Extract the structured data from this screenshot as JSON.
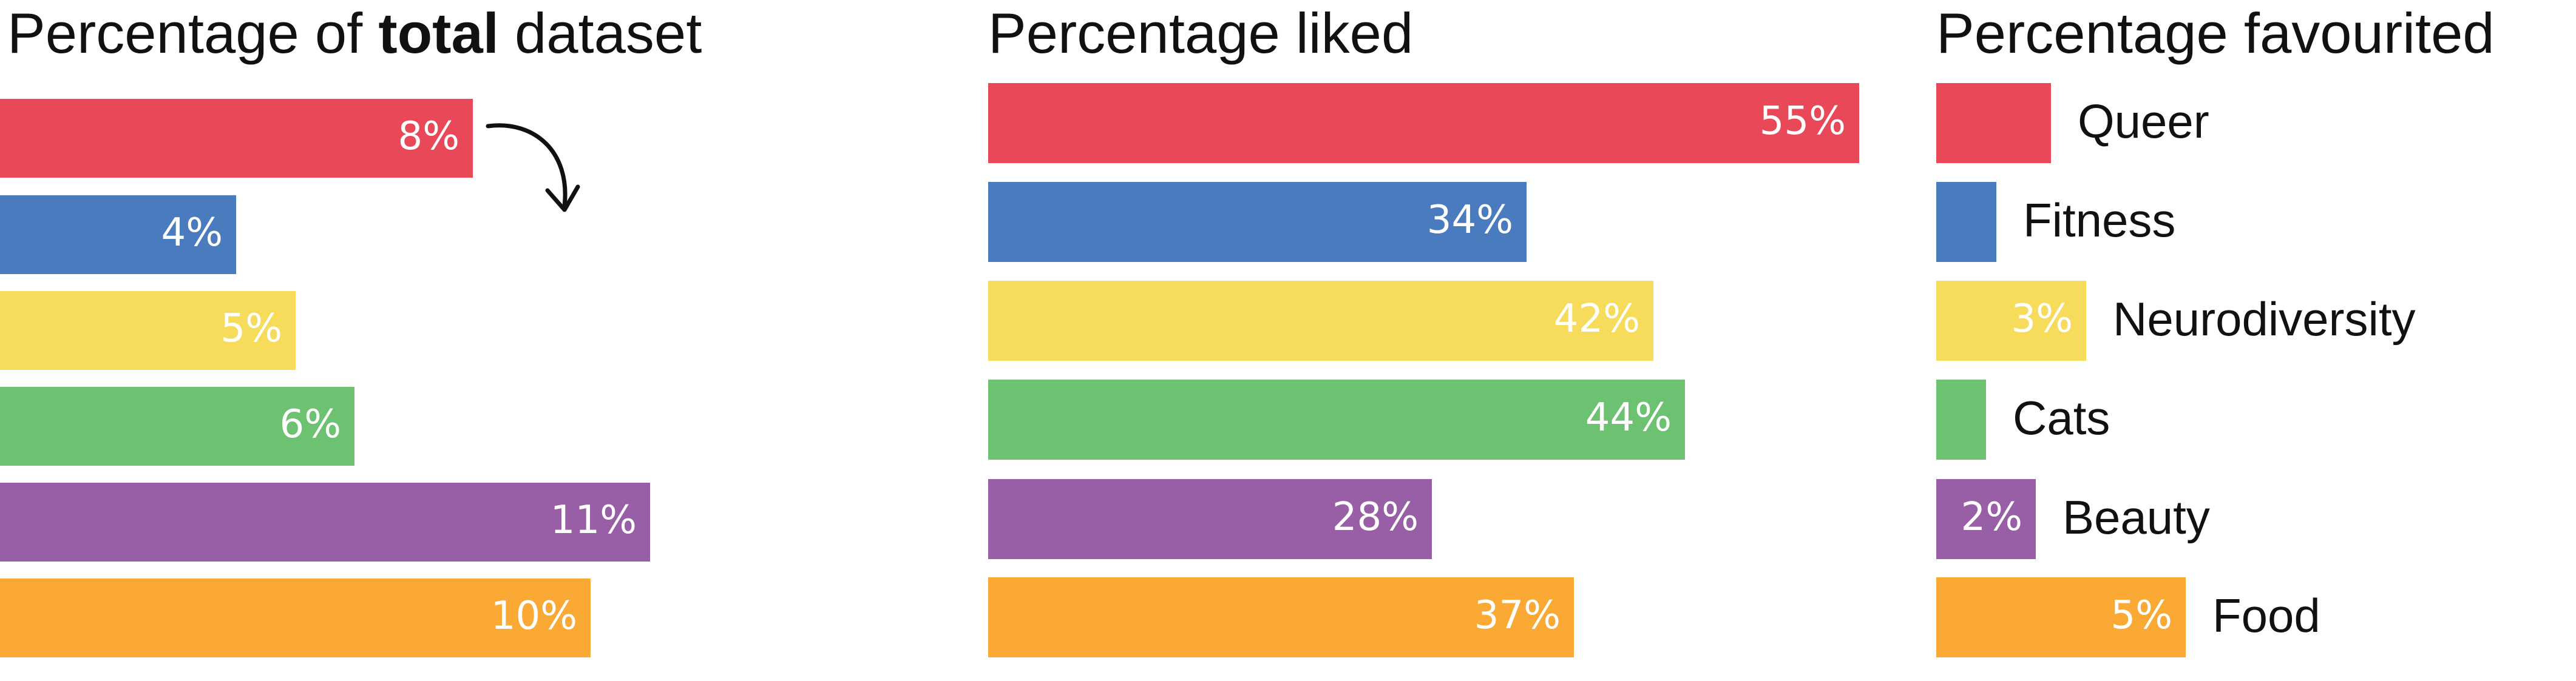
{
  "colors": {
    "Queer": "#e84857",
    "Fitness": "#4a7bbf",
    "Neurodiversity": "#f7dc5c",
    "Cats": "#6cc271",
    "Beauty": "#985fa6",
    "Food": "#faa935"
  },
  "chart_data": [
    {
      "type": "bar",
      "orientation": "horizontal",
      "title_parts": [
        "Percentage of ",
        "total",
        " dataset"
      ],
      "categories": [
        "Queer",
        "Fitness",
        "Neurodiversity",
        "Cats",
        "Beauty",
        "Food"
      ],
      "values": [
        8,
        4,
        5,
        6,
        11,
        10
      ],
      "labels": [
        "8%",
        "4%",
        "5%",
        "6%",
        "11%",
        "10%"
      ],
      "unit": "%",
      "xlim": [
        0,
        12
      ],
      "annotation": "curved-arrow"
    },
    {
      "type": "bar",
      "orientation": "horizontal",
      "title": "Percentage liked",
      "categories": [
        "Queer",
        "Fitness",
        "Neurodiversity",
        "Cats",
        "Beauty",
        "Food"
      ],
      "values": [
        55,
        34,
        42,
        44,
        28,
        37
      ],
      "labels": [
        "55%",
        "34%",
        "42%",
        "44%",
        "28%",
        "37%"
      ],
      "unit": "%",
      "xlim": [
        0,
        55
      ]
    },
    {
      "type": "bar",
      "orientation": "horizontal",
      "title": "Percentage favourited",
      "categories": [
        "Queer",
        "Fitness",
        "Neurodiversity",
        "Cats",
        "Beauty",
        "Food"
      ],
      "values": [
        2.3,
        1.2,
        3,
        1,
        2,
        5
      ],
      "labels": [
        "",
        "",
        "3%",
        "",
        "2%",
        "5%"
      ],
      "unit": "%",
      "xlim": [
        0,
        5
      ],
      "category_labels_shown": true
    }
  ]
}
